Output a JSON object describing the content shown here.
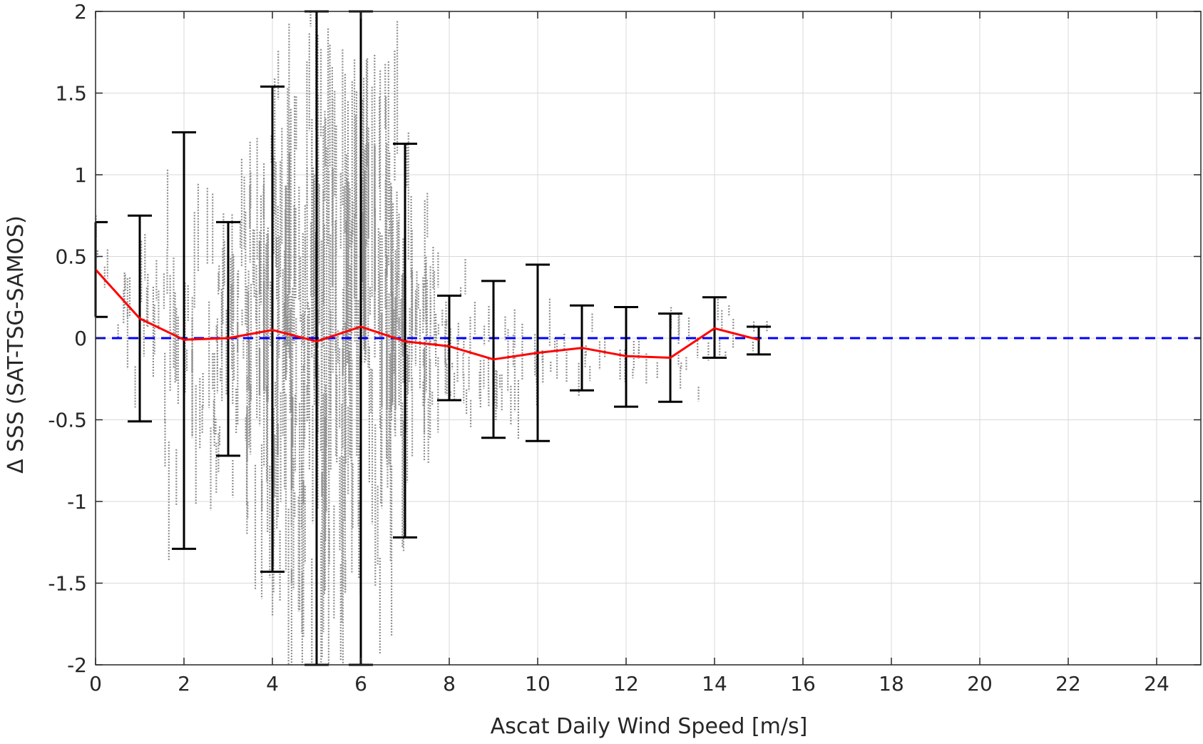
{
  "chart_data": {
    "type": "scatter",
    "title": "",
    "xlabel": "Ascat Daily Wind Speed [m/s]",
    "ylabel": "Δ SSS (SAT-TSG-SAMOS)",
    "xlim": [
      0,
      25
    ],
    "ylim": [
      -2,
      2
    ],
    "xticks": [
      "0",
      "2",
      "4",
      "6",
      "8",
      "10",
      "12",
      "14",
      "16",
      "18",
      "20",
      "22",
      "24"
    ],
    "yticks": [
      "2",
      "1.5",
      "1",
      "0.5",
      "0",
      "-0.5",
      "-1",
      "-1.5",
      "-2"
    ],
    "grid": true,
    "legend": "none",
    "colors": {
      "scatter": "#808080",
      "mean_line": "#ff0000",
      "zero_line": "#0000ff",
      "error_bars": "#000000",
      "grid": "#d9d9d9",
      "axes": "#262626"
    },
    "series": [
      {
        "kind": "mean",
        "x": [
          0,
          1,
          2,
          3,
          4,
          5,
          6,
          7,
          8,
          9,
          10,
          11,
          12,
          13,
          14,
          15
        ],
        "values": [
          0.42,
          0.12,
          -0.01,
          0.0,
          0.05,
          -0.02,
          0.07,
          -0.02,
          -0.05,
          -0.13,
          -0.09,
          -0.06,
          -0.11,
          -0.12,
          0.06,
          -0.01
        ]
      },
      {
        "kind": "error_bars",
        "x": [
          0,
          1,
          2,
          3,
          4,
          5,
          6,
          7,
          8,
          9,
          10,
          11,
          12,
          13,
          14,
          15
        ],
        "lower": [
          0.13,
          -0.51,
          -1.29,
          -0.72,
          -1.43,
          -2.0,
          -2.0,
          -1.22,
          -0.38,
          -0.61,
          -0.63,
          -0.32,
          -0.42,
          -0.39,
          -0.12,
          -0.1
        ],
        "upper": [
          0.71,
          0.75,
          1.26,
          0.71,
          1.54,
          2.0,
          2.0,
          1.19,
          0.26,
          0.35,
          0.45,
          0.2,
          0.19,
          0.15,
          0.25,
          0.07
        ]
      },
      {
        "kind": "reference",
        "y": 0
      }
    ]
  }
}
